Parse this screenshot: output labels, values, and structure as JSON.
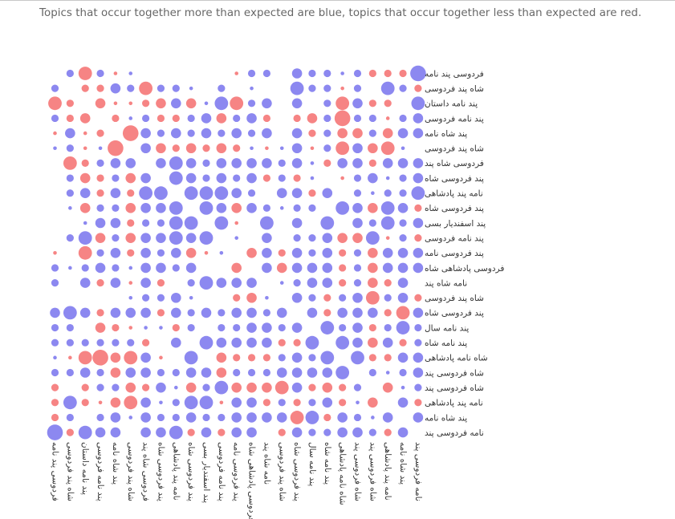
{
  "caption": "Topics that occur together more than expected are blue, topics that occur together less than expected are red.",
  "colors": {
    "positive": "#8c88f0",
    "negative": "#f68484"
  },
  "chart_data": {
    "type": "heatmap",
    "encoding": "bubble size = magnitude of deviation from expected co-occurrence; color = sign",
    "labels": [
      "فردوسی پند نامه",
      "شاه پند فردوسی",
      "پند نامه داستان",
      "پند نامه فردوسی",
      "پند شاه نامه",
      "شاه پند فردوسی",
      "فردوسی شاه پند",
      "پند فردوسی شاه",
      "نامه پند پادشاهی",
      "پند فردوسی شاه",
      "پند اسفندیار بسی",
      "پند نامه فردوسی",
      "پند فردوسی نامه",
      "فردوسی پادشاهی شاه",
      "نامه شاه پند",
      "شاه پند فردوسی",
      "پند فردوسی شاه",
      "پند نامه سال",
      "پند نامه شاه",
      "شاه نامه پادشاهی",
      "شاه فردوسی پند",
      "شاه فردوسی پند",
      "نامه پند پادشاهی",
      "پند شاه نامه",
      "نامه فردوسی پند"
    ],
    "values": [
      [
        0,
        2,
        -4,
        2,
        -1,
        1,
        0,
        0,
        0,
        0,
        0,
        0,
        -1,
        2,
        2,
        0,
        3,
        2,
        2,
        1,
        2,
        -2,
        -2,
        -2,
        5
      ],
      [
        2,
        0,
        -2,
        -2,
        3,
        2,
        -4,
        2,
        2,
        1,
        0,
        2,
        0,
        1,
        0,
        0,
        4,
        2,
        2,
        -1,
        2,
        0,
        4,
        2,
        -2
      ],
      [
        -4,
        -2,
        0,
        -3,
        -1,
        -1,
        -2,
        -3,
        3,
        -3,
        1,
        4,
        -4,
        2,
        3,
        0,
        3,
        0,
        2,
        -4,
        3,
        -2,
        -2,
        0,
        4
      ],
      [
        2,
        -2,
        -3,
        0,
        -2,
        1,
        2,
        -2,
        -2,
        2,
        3,
        -3,
        2,
        3,
        -2,
        0,
        -2,
        -3,
        2,
        -5,
        2,
        2,
        -1,
        2,
        3
      ],
      [
        -1,
        3,
        -1,
        -2,
        0,
        -5,
        3,
        2,
        3,
        2,
        3,
        2,
        3,
        2,
        3,
        0,
        3,
        -2,
        2,
        -3,
        -3,
        2,
        -3,
        3,
        3
      ],
      [
        1,
        2,
        -1,
        1,
        -5,
        0,
        3,
        -3,
        -2,
        -3,
        -2,
        -3,
        -2,
        1,
        -1,
        1,
        3,
        -1,
        2,
        -4,
        3,
        -3,
        -4,
        1,
        0
      ],
      [
        0,
        -4,
        -2,
        2,
        3,
        3,
        0,
        3,
        4,
        3,
        2,
        3,
        3,
        3,
        3,
        2,
        3,
        1,
        -2,
        3,
        3,
        -2,
        3,
        3,
        3
      ],
      [
        0,
        2,
        -3,
        -2,
        2,
        -3,
        3,
        0,
        4,
        3,
        2,
        3,
        2,
        3,
        -2,
        2,
        -2,
        1,
        0,
        -1,
        2,
        3,
        1,
        2,
        3
      ],
      [
        0,
        2,
        3,
        -2,
        3,
        -2,
        4,
        4,
        0,
        4,
        4,
        4,
        3,
        2,
        0,
        3,
        3,
        -2,
        3,
        0,
        2,
        1,
        2,
        2,
        4
      ],
      [
        0,
        1,
        -3,
        2,
        2,
        -3,
        3,
        3,
        4,
        0,
        4,
        3,
        -3,
        3,
        2,
        1,
        2,
        2,
        0,
        4,
        3,
        -3,
        4,
        3,
        -2
      ],
      [
        0,
        0,
        1,
        3,
        3,
        -2,
        2,
        2,
        4,
        4,
        0,
        4,
        -1,
        0,
        4,
        0,
        3,
        0,
        4,
        0,
        3,
        2,
        4,
        2,
        3
      ],
      [
        0,
        2,
        4,
        -3,
        2,
        -3,
        3,
        3,
        4,
        3,
        4,
        0,
        1,
        0,
        3,
        0,
        2,
        2,
        3,
        -3,
        -3,
        4,
        -1,
        2,
        -2
      ],
      [
        -1,
        0,
        -4,
        2,
        3,
        -2,
        3,
        2,
        3,
        -3,
        -1,
        1,
        0,
        -3,
        3,
        -2,
        3,
        2,
        3,
        -2,
        2,
        -3,
        3,
        3,
        3
      ],
      [
        2,
        1,
        2,
        3,
        2,
        1,
        3,
        3,
        2,
        3,
        0,
        0,
        -3,
        0,
        3,
        -3,
        3,
        3,
        3,
        -2,
        2,
        -3,
        3,
        3,
        3
      ],
      [
        2,
        0,
        3,
        -2,
        3,
        -1,
        3,
        -2,
        0,
        2,
        4,
        3,
        3,
        3,
        0,
        1,
        2,
        3,
        3,
        -2,
        2,
        -3,
        -2,
        3,
        0
      ],
      [
        0,
        0,
        0,
        0,
        0,
        1,
        2,
        2,
        3,
        1,
        0,
        0,
        -2,
        -3,
        1,
        0,
        3,
        2,
        -2,
        2,
        3,
        -4,
        2,
        3,
        -2
      ],
      [
        3,
        4,
        3,
        -2,
        3,
        3,
        3,
        -2,
        3,
        2,
        3,
        2,
        3,
        3,
        2,
        3,
        0,
        3,
        -2,
        3,
        3,
        3,
        -2,
        -4,
        3
      ],
      [
        2,
        2,
        0,
        -3,
        -2,
        -1,
        1,
        1,
        -2,
        2,
        0,
        2,
        2,
        3,
        3,
        2,
        3,
        0,
        4,
        2,
        3,
        -2,
        2,
        4,
        2
      ],
      [
        2,
        2,
        2,
        2,
        2,
        2,
        -2,
        0,
        3,
        0,
        4,
        3,
        3,
        3,
        3,
        -2,
        -2,
        4,
        0,
        4,
        3,
        -3,
        3,
        -2,
        2
      ],
      [
        1,
        -1,
        -4,
        -5,
        -3,
        -4,
        3,
        -1,
        0,
        4,
        0,
        -3,
        -2,
        -2,
        -2,
        2,
        3,
        2,
        4,
        0,
        4,
        -2,
        -2,
        3,
        3
      ],
      [
        2,
        2,
        3,
        2,
        -3,
        3,
        3,
        2,
        2,
        3,
        3,
        -3,
        2,
        2,
        2,
        3,
        3,
        3,
        3,
        4,
        0,
        2,
        1,
        2,
        3
      ],
      [
        -2,
        0,
        -2,
        2,
        2,
        -3,
        -2,
        3,
        1,
        -3,
        2,
        4,
        -3,
        -3,
        -3,
        -4,
        3,
        -2,
        -3,
        -2,
        2,
        0,
        -3,
        1,
        2
      ],
      [
        -2,
        4,
        -2,
        -1,
        -3,
        -4,
        3,
        1,
        2,
        4,
        4,
        -1,
        3,
        3,
        -2,
        2,
        -2,
        2,
        3,
        -2,
        1,
        -3,
        0,
        3,
        -2
      ],
      [
        -2,
        2,
        0,
        2,
        3,
        1,
        3,
        2,
        2,
        3,
        2,
        2,
        3,
        3,
        3,
        3,
        -4,
        4,
        -2,
        3,
        2,
        1,
        3,
        0,
        3
      ],
      [
        5,
        -2,
        4,
        3,
        3,
        0,
        3,
        3,
        4,
        -2,
        3,
        -2,
        3,
        3,
        0,
        -2,
        3,
        2,
        2,
        3,
        3,
        2,
        -2,
        3,
        0
      ]
    ]
  }
}
